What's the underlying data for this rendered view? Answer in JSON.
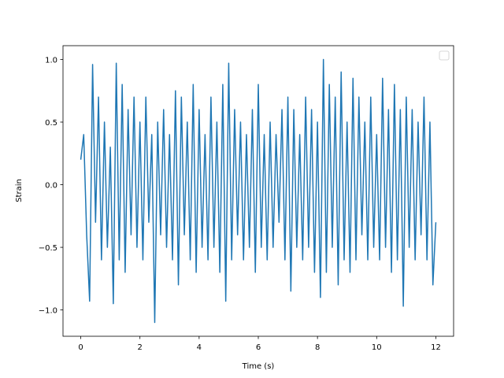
{
  "chart_data": {
    "type": "line",
    "xlabel": "Time (s)",
    "ylabel": "Strain",
    "x": [
      0,
      0.1,
      0.2,
      0.3,
      0.4,
      0.5,
      0.6,
      0.7,
      0.8,
      0.9,
      1,
      1.1,
      1.2,
      1.3,
      1.4,
      1.5,
      1.6,
      1.7,
      1.8,
      1.9,
      2,
      2.1,
      2.2,
      2.3,
      2.4,
      2.5,
      2.6,
      2.7,
      2.8,
      2.9,
      3,
      3.1,
      3.2,
      3.3,
      3.4,
      3.5,
      3.6,
      3.7,
      3.8,
      3.9,
      4,
      4.1,
      4.2,
      4.3,
      4.4,
      4.5,
      4.6,
      4.7,
      4.8,
      4.9,
      5,
      5.1,
      5.2,
      5.3,
      5.4,
      5.5,
      5.6,
      5.7,
      5.8,
      5.9,
      6,
      6.1,
      6.2,
      6.3,
      6.4,
      6.5,
      6.6,
      6.7,
      6.8,
      6.9,
      7,
      7.1,
      7.2,
      7.3,
      7.4,
      7.5,
      7.6,
      7.7,
      7.8,
      7.9,
      8,
      8.1,
      8.2,
      8.3,
      8.4,
      8.5,
      8.6,
      8.7,
      8.8,
      8.9,
      9,
      9.1,
      9.2,
      9.3,
      9.4,
      9.5,
      9.6,
      9.7,
      9.8,
      9.9,
      10,
      10.1,
      10.2,
      10.3,
      10.4,
      10.5,
      10.6,
      10.7,
      10.8,
      10.9,
      11,
      11.1,
      11.2,
      11.3,
      11.4,
      11.5,
      11.6,
      11.7,
      11.8,
      11.9,
      12
    ],
    "series": [
      {
        "color": "#1f77b4",
        "values": [
          0.2,
          0.4,
          -0.4,
          -0.93,
          0.96,
          -0.3,
          0.7,
          -0.6,
          0.5,
          -0.5,
          0.3,
          -0.95,
          0.97,
          -0.6,
          0.8,
          -0.7,
          0.6,
          -0.4,
          0.7,
          -0.5,
          0.5,
          -0.6,
          0.7,
          -0.3,
          0.4,
          -1.1,
          0.5,
          -0.4,
          0.6,
          -0.5,
          0.4,
          -0.6,
          0.75,
          -0.8,
          0.7,
          -0.4,
          0.5,
          -0.6,
          0.8,
          -0.7,
          0.6,
          -0.5,
          0.4,
          -0.6,
          0.7,
          -0.5,
          0.5,
          -0.7,
          0.8,
          -0.93,
          0.97,
          -0.6,
          0.6,
          -0.4,
          0.5,
          -0.6,
          0.4,
          -0.5,
          0.6,
          -0.7,
          0.8,
          -0.5,
          0.4,
          -0.6,
          0.5,
          -0.5,
          0.4,
          -0.3,
          0.6,
          -0.6,
          0.7,
          -0.85,
          0.6,
          -0.5,
          0.4,
          -0.6,
          0.7,
          -0.5,
          0.6,
          -0.7,
          0.5,
          -0.9,
          1.0,
          -0.7,
          0.8,
          -0.5,
          0.7,
          -0.8,
          0.9,
          -0.6,
          0.5,
          -0.7,
          0.85,
          -0.6,
          0.7,
          -0.4,
          0.5,
          -0.6,
          0.7,
          -0.5,
          0.4,
          -0.6,
          0.85,
          -0.5,
          0.6,
          -0.7,
          0.8,
          -0.6,
          0.6,
          -0.97,
          0.7,
          -0.5,
          0.6,
          -0.6,
          0.5,
          -0.4,
          0.7,
          -0.6,
          0.5,
          -0.8,
          -0.3
        ]
      }
    ],
    "xlim": [
      -0.6,
      12.6
    ],
    "ylim": [
      -1.21,
      1.11
    ],
    "xticks": [
      0,
      2,
      4,
      6,
      8,
      10,
      12
    ],
    "yticks": [
      {
        "value": -1.0,
        "label": "−1.0"
      },
      {
        "value": -0.5,
        "label": "−0.5"
      },
      {
        "value": 0,
        "label": "0.0"
      },
      {
        "value": 0.5,
        "label": "0.5"
      },
      {
        "value": 1.0,
        "label": "1.0"
      }
    ],
    "grid": false
  }
}
